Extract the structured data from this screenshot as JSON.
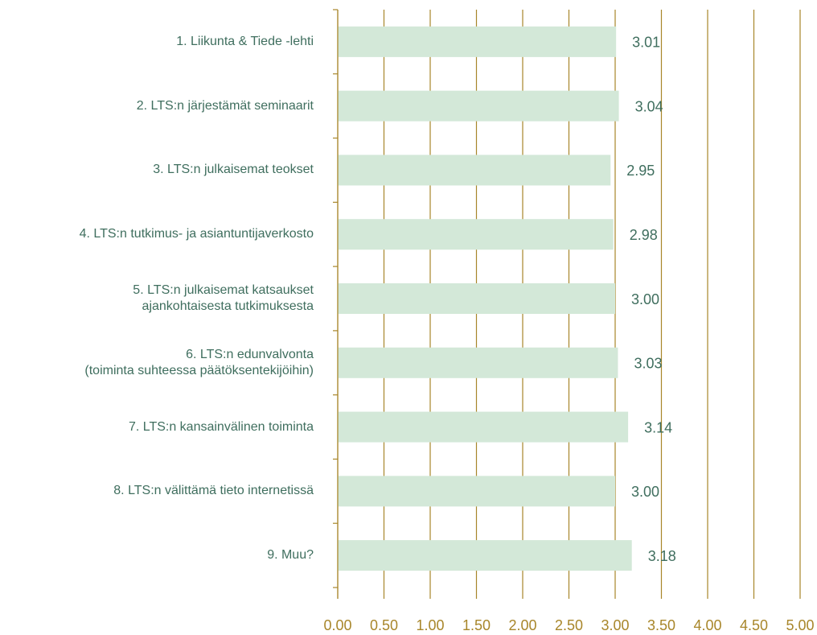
{
  "chart_data": {
    "type": "bar",
    "orientation": "horizontal",
    "categories": [
      "1. Liikunta & Tiede -lehti",
      "2. LTS:n järjestämät seminaarit",
      "3. LTS:n julkaisemat teokset",
      "4. LTS:n tutkimus- ja asiantuntijaverkosto",
      "5. LTS:n julkaisemat katsaukset\najankohtaisesta tutkimuksesta",
      "6. LTS:n edunvalvonta\n(toiminta suhteessa päätöksentekijöihin)",
      "7. LTS:n kansainvälinen toiminta",
      "8. LTS:n välittämä tieto internetissä",
      "9. Muu?"
    ],
    "values": [
      3.01,
      3.04,
      2.95,
      2.98,
      3.0,
      3.03,
      3.14,
      3.0,
      3.18
    ],
    "value_labels": [
      "3.01",
      "3.04",
      "2.95",
      "2.98",
      "3.00",
      "3.03",
      "3.14",
      "3.00",
      "3.18"
    ],
    "color": "#d3e8d8",
    "xlim": [
      0,
      5
    ],
    "xticks": [
      {
        "value": 0,
        "label": "0.00"
      },
      {
        "value": 0.5,
        "label": "0.50"
      },
      {
        "value": 1,
        "label": "1.00"
      },
      {
        "value": 1.5,
        "label": "1.50"
      },
      {
        "value": 2,
        "label": "2.00"
      },
      {
        "value": 2.5,
        "label": "2.50"
      },
      {
        "value": 3,
        "label": "3.00"
      },
      {
        "value": 3.5,
        "label": "3.50"
      },
      {
        "value": 4,
        "label": "4.00"
      },
      {
        "value": 4.5,
        "label": "4.50"
      },
      {
        "value": 5,
        "label": "5.00"
      }
    ],
    "grid": true
  }
}
